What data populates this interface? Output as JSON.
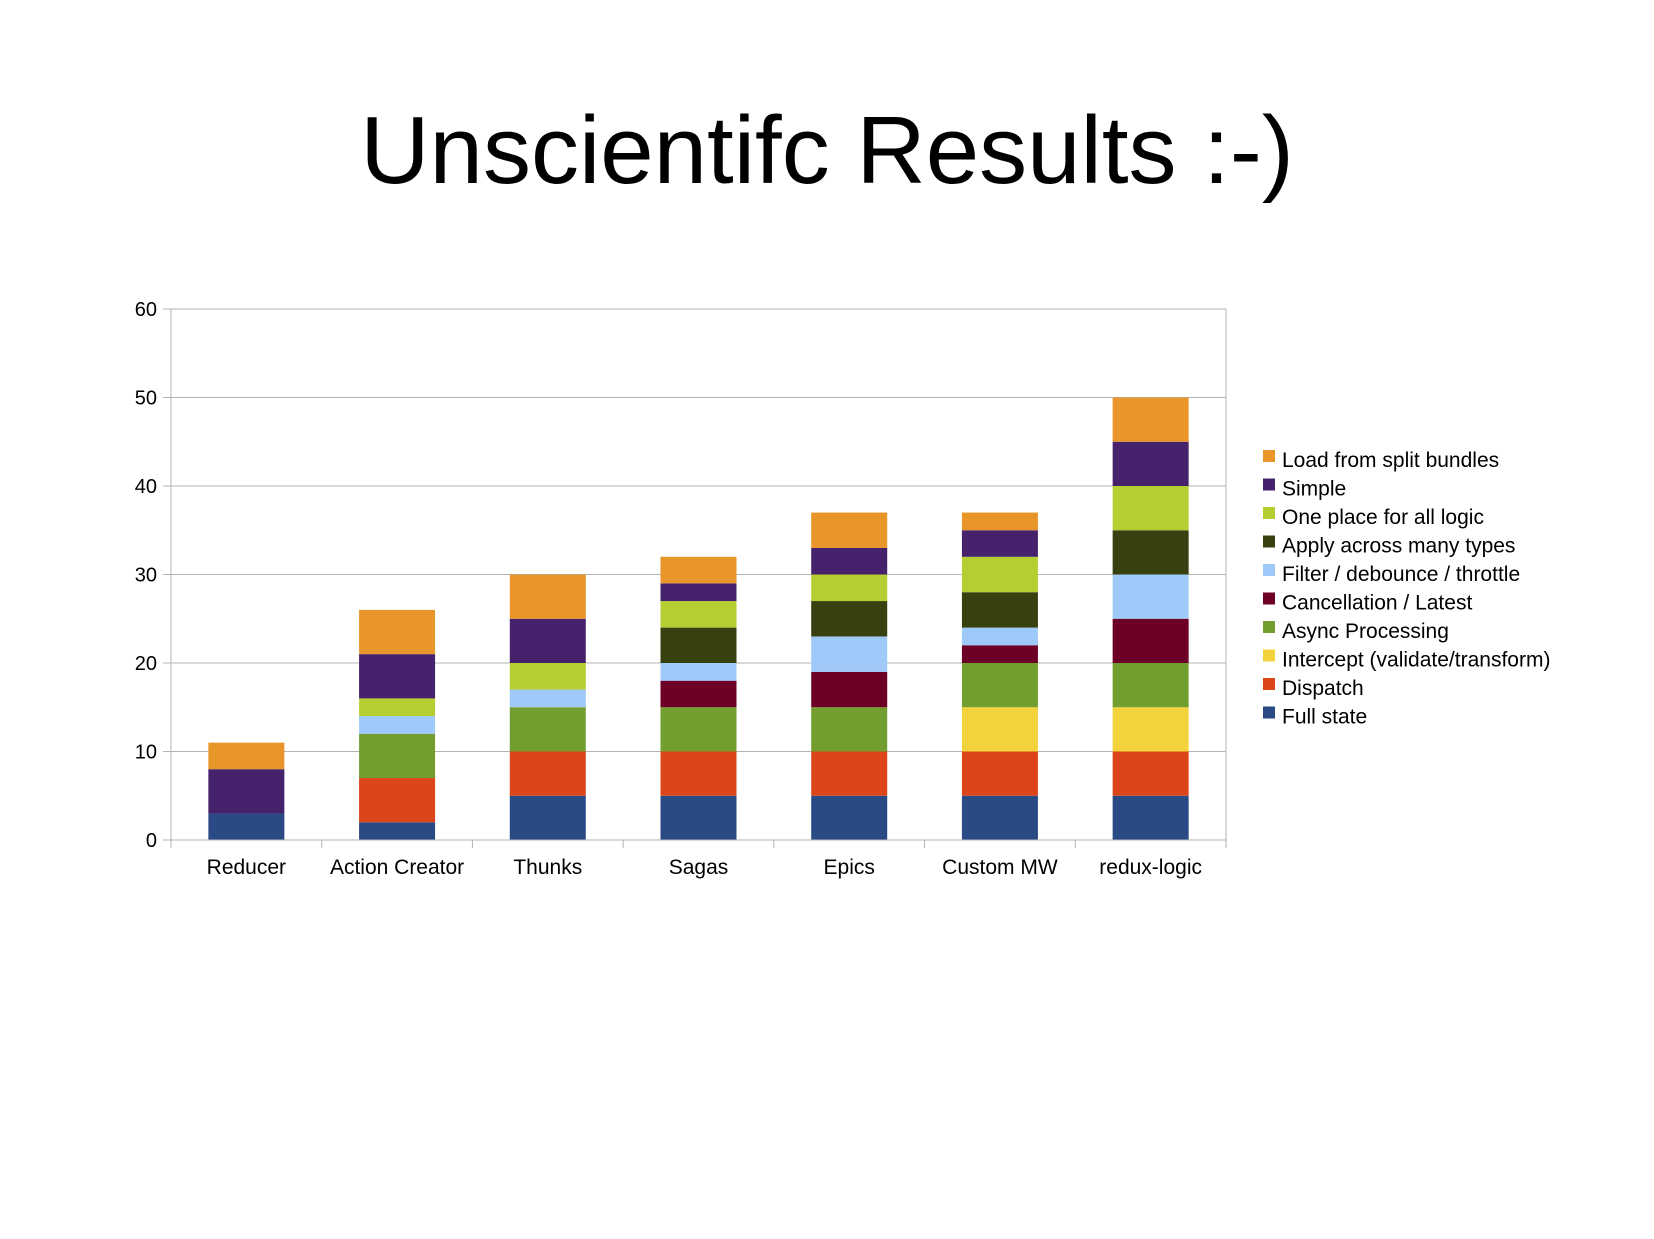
{
  "slide": {
    "title": "Unscientifc Results :-)"
  },
  "chart_data": {
    "type": "bar",
    "stacked": true,
    "title": "",
    "xlabel": "",
    "ylabel": "",
    "ylim": [
      0,
      60
    ],
    "yticks": [
      0,
      10,
      20,
      30,
      40,
      50,
      60
    ],
    "grid": true,
    "legend_position": "right",
    "categories": [
      "Reducer",
      "Action Creator",
      "Thunks",
      "Sagas",
      "Epics",
      "Custom MW",
      "redux-logic"
    ],
    "series": [
      {
        "name": "Full state",
        "color": "#2a4a86",
        "values": [
          3,
          2,
          5,
          5,
          5,
          5,
          5
        ]
      },
      {
        "name": "Dispatch",
        "color": "#dc451a",
        "values": [
          0,
          5,
          5,
          5,
          5,
          5,
          5
        ]
      },
      {
        "name": "Intercept (validate/transform)",
        "color": "#f3d33b",
        "values": [
          0,
          0,
          0,
          0,
          0,
          5,
          5
        ]
      },
      {
        "name": "Async Processing",
        "color": "#729d2f",
        "values": [
          0,
          5,
          5,
          5,
          5,
          5,
          5
        ]
      },
      {
        "name": "Cancellation / Latest",
        "color": "#6d0026",
        "values": [
          0,
          0,
          0,
          3,
          4,
          2,
          5
        ]
      },
      {
        "name": "Filter / debounce / throttle",
        "color": "#9ec9f8",
        "values": [
          0,
          2,
          2,
          2,
          4,
          2,
          5
        ]
      },
      {
        "name": "Apply across many types",
        "color": "#37400f",
        "values": [
          0,
          0,
          0,
          4,
          4,
          4,
          5
        ]
      },
      {
        "name": "One place for all logic",
        "color": "#b5cf33",
        "values": [
          0,
          2,
          3,
          3,
          3,
          4,
          5
        ]
      },
      {
        "name": "Simple",
        "color": "#46226c",
        "values": [
          5,
          5,
          5,
          2,
          3,
          3,
          5
        ]
      },
      {
        "name": "Load from split bundles",
        "color": "#e8962a",
        "values": [
          3,
          5,
          5,
          3,
          4,
          2,
          5
        ]
      }
    ]
  }
}
